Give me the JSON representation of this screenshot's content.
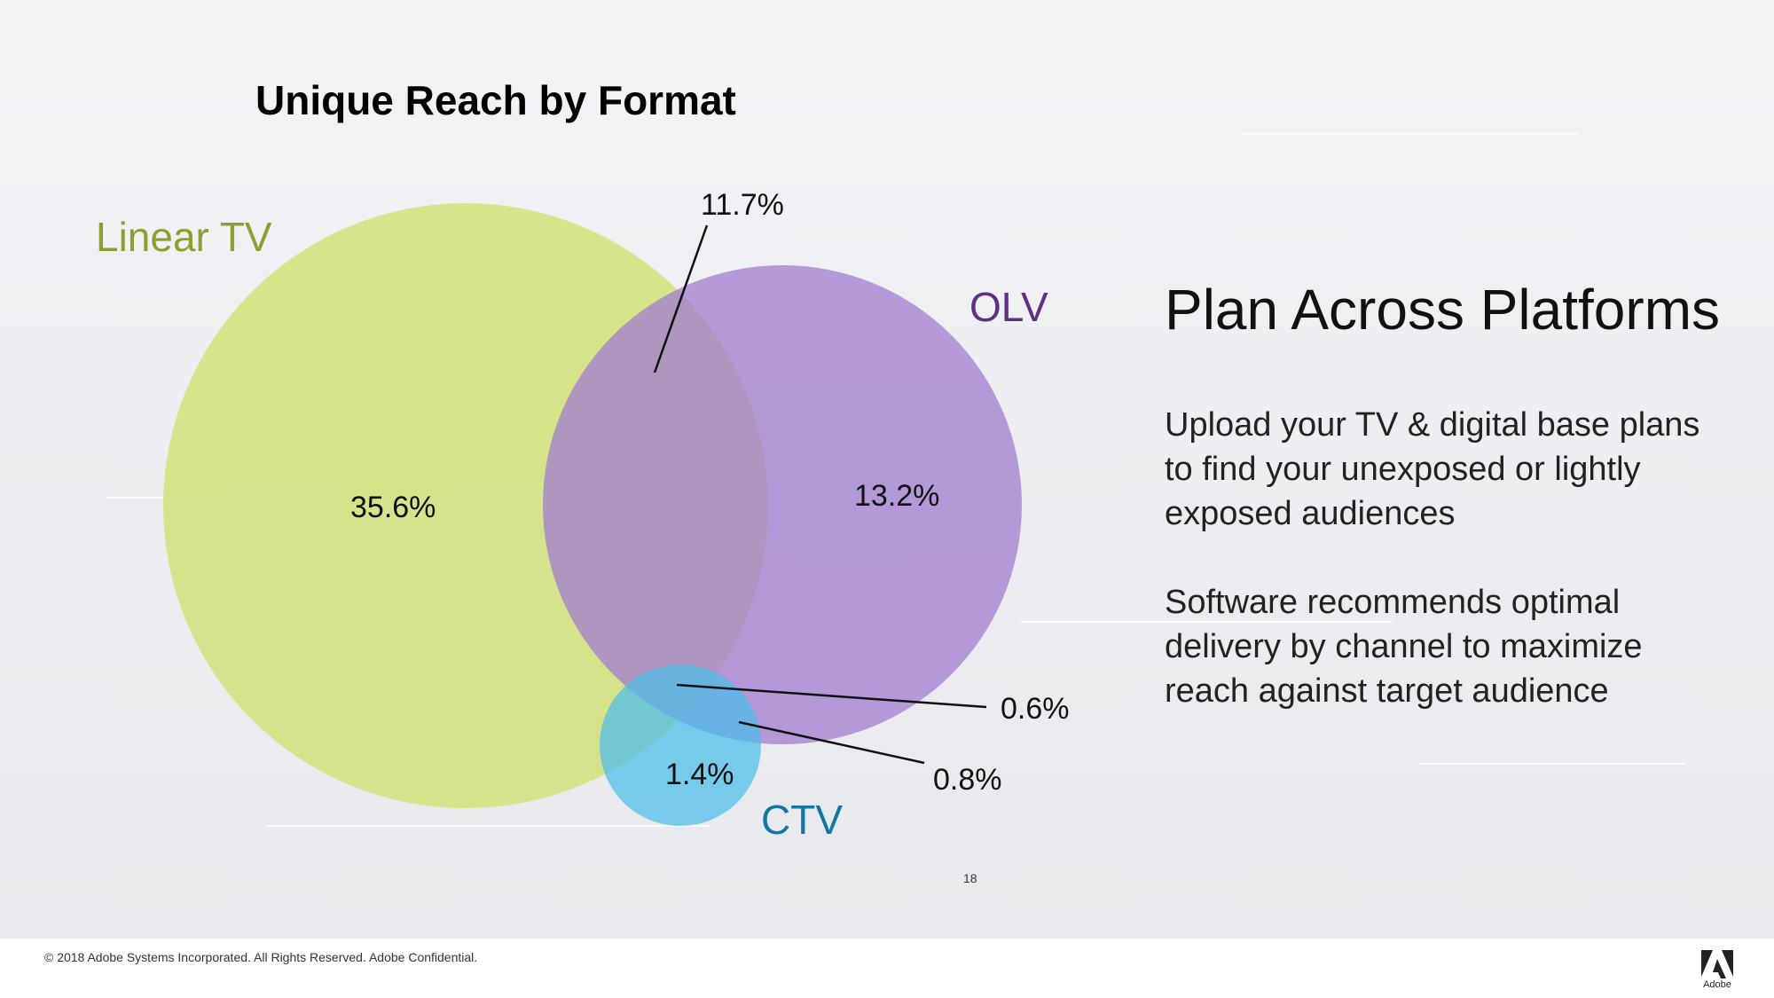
{
  "title": "Unique Reach by Format",
  "sets": [
    {
      "label": "Linear TV",
      "color": "#d6e386",
      "label_color": "#8aa033",
      "icon": "circle"
    },
    {
      "label": "OLV",
      "color": "#b294d8",
      "label_color": "#5e2f82",
      "icon": "circle"
    },
    {
      "label": "CTV",
      "color": "#5bc2ec",
      "label_color": "#1377a3",
      "icon": "circle"
    }
  ],
  "values": {
    "linear_only": "35.6%",
    "olv_only": "13.2%",
    "linear_olv": "11.7%",
    "all_three": "0.6%",
    "olv_ctv": "0.8%",
    "ctv_only": "1.4%"
  },
  "side": {
    "title": "Plan Across Platforms",
    "para1": "Upload your TV & digital base plans to find your unexposed or lightly exposed audiences",
    "para2": "Software recommends optimal delivery by channel to maximize reach against target audience"
  },
  "page_number": "18",
  "footer": "© 2018 Adobe Systems Incorporated.  All Rights Reserved.  Adobe Confidential.",
  "logo_text": "Adobe"
}
